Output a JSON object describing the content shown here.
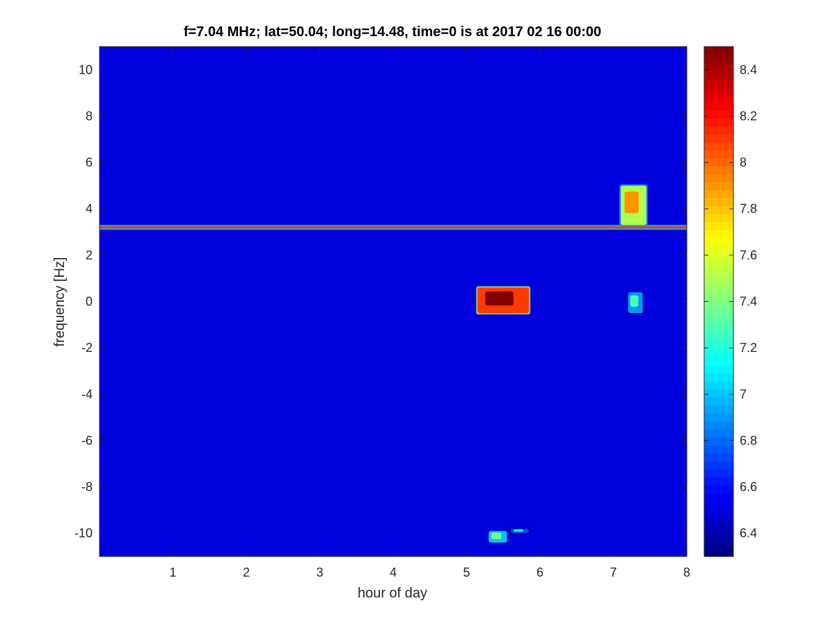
{
  "chart_data": {
    "type": "heatmap",
    "title": "f=7.04 MHz;  lat=50.04; long=14.48, time=0 is at 2017 02 16 00:00",
    "xlabel": "hour of day",
    "ylabel": "frequency [Hz]",
    "xlim": [
      0,
      8
    ],
    "ylim": [
      -11,
      11
    ],
    "x_ticks": [
      1,
      2,
      3,
      4,
      5,
      6,
      7,
      8
    ],
    "y_ticks": [
      -10,
      -8,
      -6,
      -4,
      -2,
      0,
      2,
      4,
      6,
      8,
      10
    ],
    "colorbar": {
      "colormap": "jet",
      "range": [
        6.3,
        8.5
      ],
      "ticks": [
        6.4,
        6.6,
        6.8,
        7,
        7.2,
        7.4,
        7.6,
        7.8,
        8,
        8.2,
        8.4
      ]
    },
    "background_level": 6.5,
    "features": [
      {
        "kind": "horizontal_line",
        "x_start": 0,
        "x_end": 8,
        "y": 3.2,
        "level": 8.1
      },
      {
        "kind": "blob",
        "x_start": 5.15,
        "x_end": 5.85,
        "y_start": -0.5,
        "y_end": 0.6,
        "level": 8.5
      },
      {
        "kind": "blob",
        "x_start": 7.1,
        "x_end": 7.45,
        "y_start": 3.3,
        "y_end": 5.0,
        "level": 7.9
      },
      {
        "kind": "blob",
        "x_start": 7.2,
        "x_end": 7.4,
        "y_start": -0.5,
        "y_end": 0.4,
        "level": 7.3
      },
      {
        "kind": "blob",
        "x_start": 5.3,
        "x_end": 5.55,
        "y_start": -10.4,
        "y_end": -9.9,
        "level": 7.4
      },
      {
        "kind": "blob",
        "x_start": 5.6,
        "x_end": 5.85,
        "y_start": -10.0,
        "y_end": -9.8,
        "level": 7.1
      }
    ]
  }
}
